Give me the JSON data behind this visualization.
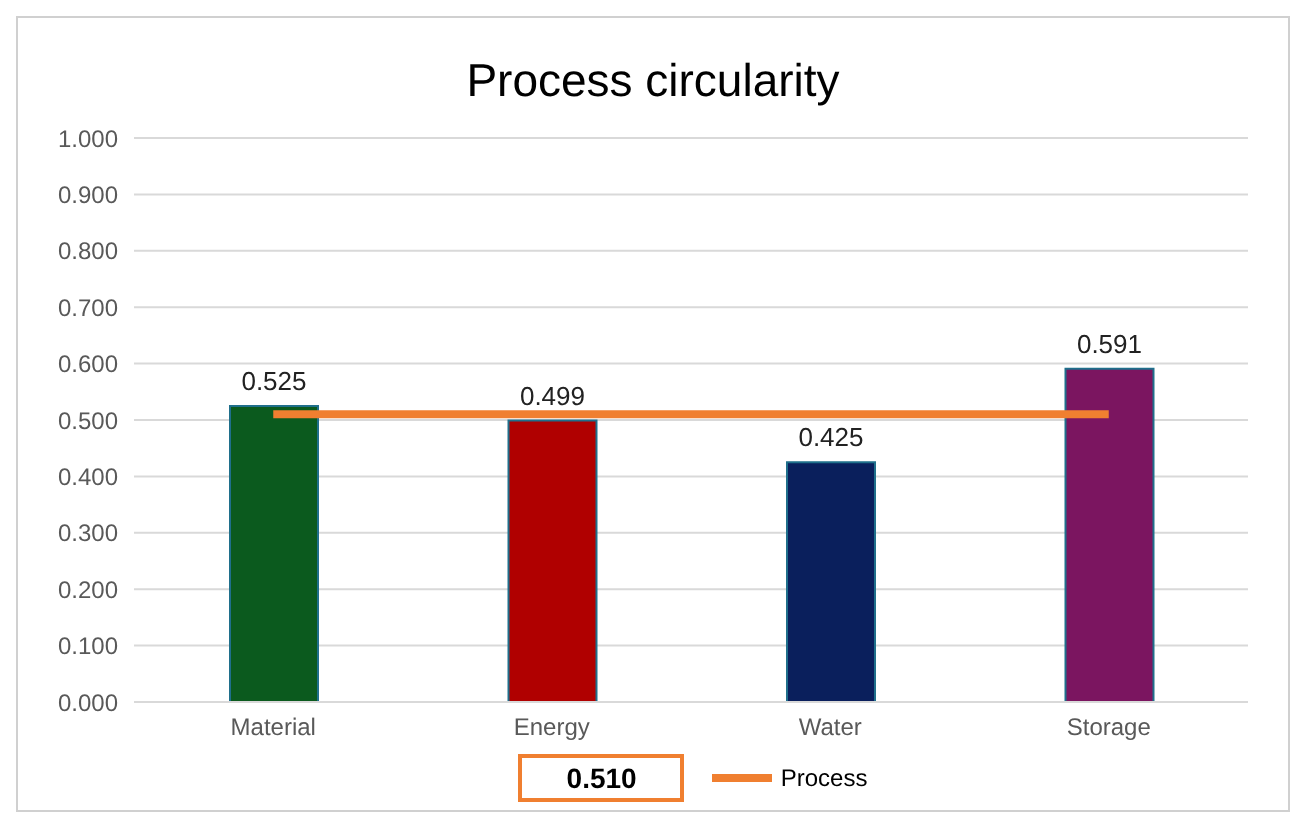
{
  "chart_data": {
    "type": "bar",
    "title": "Process circularity",
    "categories": [
      "Material",
      "Energy",
      "Water",
      "Storage"
    ],
    "series": [
      {
        "values": [
          0.525,
          0.499,
          0.425,
          0.591
        ],
        "colors": [
          "#0b5a1e",
          "#b00000",
          "#0a1f5c",
          "#7b1560"
        ],
        "value_labels": [
          "0.525",
          "0.499",
          "0.425",
          "0.591"
        ]
      },
      {
        "type": "line",
        "name": "Process",
        "color": "#f07f30",
        "values": [
          0.51,
          0.51,
          0.51,
          0.51
        ]
      }
    ],
    "ylim": [
      0,
      1
    ],
    "yticks": [
      {
        "value": 0,
        "label": "0.000"
      },
      {
        "value": 0.1,
        "label": "0.100"
      },
      {
        "value": 0.2,
        "label": "0.200"
      },
      {
        "value": 0.3,
        "label": "0.300"
      },
      {
        "value": 0.4,
        "label": "0.400"
      },
      {
        "value": 0.5,
        "label": "0.500"
      },
      {
        "value": 0.6,
        "label": "0.600"
      },
      {
        "value": 0.7,
        "label": "0.700"
      },
      {
        "value": 0.8,
        "label": "0.800"
      },
      {
        "value": 0.9,
        "label": "0.900"
      },
      {
        "value": 1,
        "label": "1.000"
      }
    ],
    "grid": "y",
    "legend": "bottom",
    "annotations": [
      "0.510"
    ]
  }
}
